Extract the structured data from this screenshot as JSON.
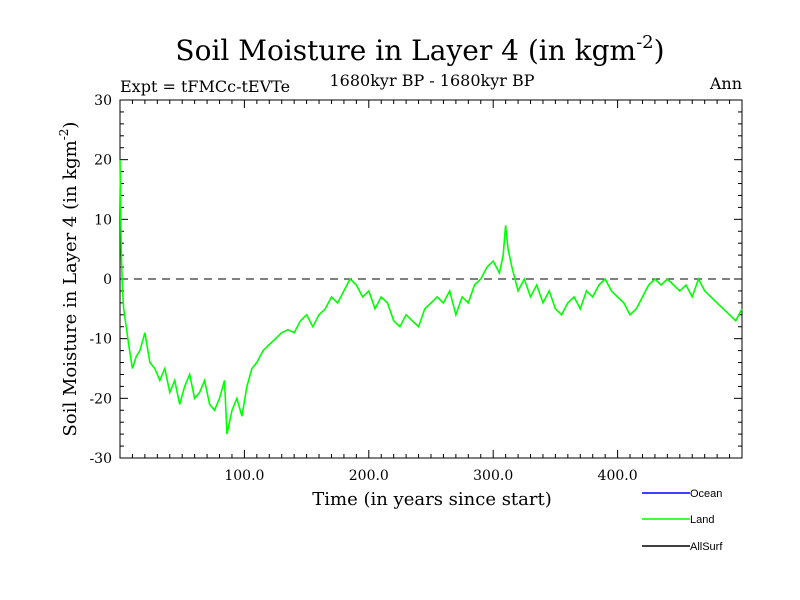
{
  "chart_data": {
    "type": "line",
    "title": "Soil Moisture in Layer 4 (in kgm",
    "title_sup": "-2",
    "title_close": ")",
    "subtitle_left": "Expt = tFMCc-tEVTe",
    "subtitle_center": "1680kyr BP - 1680kyr BP",
    "subtitle_right": "Ann",
    "xlabel": "Time (in years since start)",
    "ylabel": "Soil Moisture in Layer 4 (in kgm",
    "ylabel_sup": "-2",
    "ylabel_close": ")",
    "xlim": [
      0,
      500
    ],
    "ylim": [
      -30,
      30
    ],
    "x_ticks": [
      100,
      200,
      300,
      400
    ],
    "x_tick_labels": [
      "100.0",
      "200.0",
      "300.0",
      "400.0"
    ],
    "y_ticks": [
      -30,
      -20,
      -10,
      0,
      10,
      20,
      30
    ],
    "y_tick_labels": [
      "-30",
      "-20",
      "-10",
      "0",
      "10",
      "20",
      "30"
    ],
    "reference_line_y": 0,
    "legend": [
      {
        "name": "Ocean",
        "color": "#0000ff"
      },
      {
        "name": "Land",
        "color": "#00ff00"
      },
      {
        "name": "AllSurf",
        "color": "#000000"
      }
    ],
    "series": [
      {
        "name": "Land",
        "color": "#00ff00",
        "x": [
          0,
          1,
          2,
          3,
          5,
          7,
          10,
          13,
          16,
          20,
          24,
          28,
          32,
          36,
          40,
          44,
          48,
          52,
          56,
          60,
          64,
          68,
          72,
          76,
          80,
          84,
          86,
          90,
          94,
          98,
          102,
          106,
          110,
          115,
          120,
          125,
          130,
          135,
          140,
          145,
          150,
          155,
          160,
          165,
          170,
          175,
          180,
          185,
          190,
          195,
          200,
          205,
          210,
          215,
          220,
          225,
          230,
          235,
          240,
          245,
          250,
          255,
          260,
          265,
          270,
          275,
          280,
          285,
          290,
          295,
          300,
          305,
          308,
          310,
          312,
          315,
          320,
          325,
          330,
          335,
          340,
          345,
          350,
          355,
          360,
          365,
          370,
          375,
          380,
          385,
          390,
          395,
          400,
          405,
          410,
          415,
          420,
          425,
          430,
          435,
          440,
          445,
          450,
          455,
          460,
          465,
          470,
          475,
          480,
          485,
          490,
          495,
          500
        ],
        "values": [
          20,
          5,
          -2,
          -5,
          -8,
          -11,
          -15,
          -13,
          -12,
          -9,
          -14,
          -15,
          -17,
          -15,
          -19,
          -17,
          -21,
          -18,
          -16,
          -20,
          -19,
          -17,
          -21,
          -22,
          -20,
          -17,
          -26,
          -22,
          -20,
          -23,
          -18,
          -15,
          -14,
          -12,
          -11,
          -10,
          -9,
          -8.5,
          -9,
          -7,
          -6,
          -8,
          -6,
          -5,
          -3,
          -4,
          -2,
          0,
          -1,
          -3,
          -2,
          -5,
          -3,
          -4,
          -7,
          -8,
          -6,
          -7,
          -8,
          -5,
          -4,
          -3,
          -4,
          -2,
          -6,
          -3,
          -4,
          -1,
          0,
          2,
          3,
          1,
          4,
          9,
          5,
          2,
          -2,
          0,
          -3,
          -1,
          -4,
          -2,
          -5,
          -6,
          -4,
          -3,
          -5,
          -2,
          -3,
          -1,
          0,
          -2,
          -3,
          -4,
          -6,
          -5,
          -3,
          -1,
          0,
          -1,
          0,
          -1,
          -2,
          -1,
          -3,
          0,
          -2,
          -3,
          -4,
          -5,
          -6,
          -7,
          -5
        ]
      }
    ]
  }
}
